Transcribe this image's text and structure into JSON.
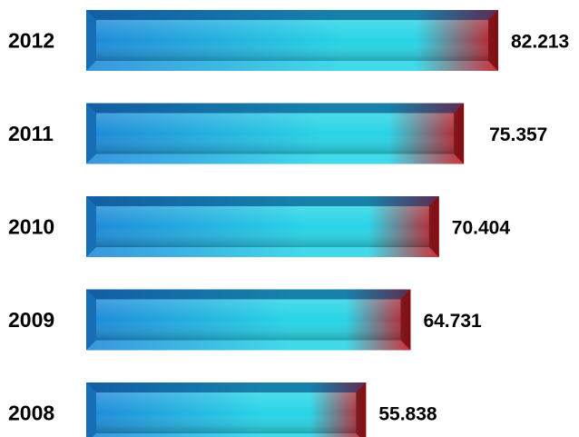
{
  "chart_data": {
    "type": "bar",
    "orientation": "horizontal",
    "categories": [
      "2012",
      "2011",
      "2010",
      "2009",
      "2008"
    ],
    "values": [
      82.213,
      75.357,
      70.404,
      64.731,
      55.838
    ],
    "value_labels": [
      "82.213",
      "75.357",
      "70.404",
      "64.731",
      "55.838"
    ],
    "title": "",
    "xlabel": "",
    "ylabel": "",
    "grid": false,
    "legend": "none",
    "colors": {
      "bar_base": "#1e88d8",
      "bar_highlight": "#28d4e6",
      "bar_end": "#c8141e",
      "bevel_dark": "#0a3c78"
    }
  }
}
